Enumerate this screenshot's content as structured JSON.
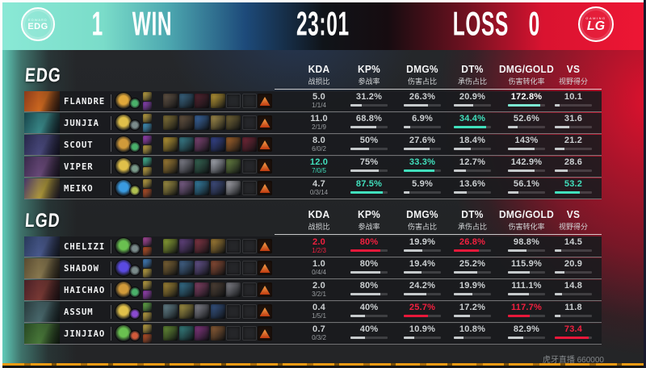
{
  "topbar": {
    "left_logo": "EDG",
    "left_logo_sub": "EDWARD",
    "left_score": "1",
    "left_result": "WIN",
    "timer": "23:01",
    "right_result": "LOSS",
    "right_score": "0",
    "right_logo": "LG",
    "right_logo_sub": "GAMING"
  },
  "columns": [
    {
      "en": "KDA",
      "zh": "战损比"
    },
    {
      "en": "KP%",
      "zh": "参战率"
    },
    {
      "en": "DMG%",
      "zh": "伤害占比"
    },
    {
      "en": "DT%",
      "zh": "承伤占比"
    },
    {
      "en": "DMG/GOLD",
      "zh": "伤害转化率"
    },
    {
      "en": "VS",
      "zh": "视野得分"
    }
  ],
  "stat_refs": [
    100,
    40,
    40,
    200,
    80
  ],
  "colors": {
    "teal_accent": "#41e0bd",
    "red_accent": "#ee1e3e",
    "bar_fill": "#c6cacc",
    "win_side": "#7adcc9",
    "loss_side": "#e01230",
    "trinket": "#d85a1e"
  },
  "teams": [
    {
      "label": "EDG",
      "result": "WIN",
      "players": [
        {
          "name": "FLANDRE",
          "portrait": [
            "#8a3a1a",
            "#d06a20",
            "#2a140c"
          ],
          "keystone": "#e0a83a",
          "secondary": "#4ab06a",
          "spells": [
            "#d8b84a",
            "#a04ad0"
          ],
          "items": [
            "#6b5a4a",
            "#3f6e8e",
            "#5a2633",
            "#c9a53a",
            "",
            ""
          ],
          "kda": "5.0",
          "kda_detail": "1/1/4",
          "kda_hl": null,
          "stats": [
            {
              "v": "31.2%",
              "hl": null
            },
            {
              "v": "26.3%",
              "hl": null
            },
            {
              "v": "20.9%",
              "hl": null
            },
            {
              "v": "172.8%",
              "hl": "teal-white"
            },
            {
              "v": "10.1",
              "hl": null
            }
          ]
        },
        {
          "name": "JUNJIA",
          "portrait": [
            "#17444a",
            "#3a8a8a",
            "#0e1f28"
          ],
          "keystone": "#e0c04a",
          "secondary": "#7a8a8a",
          "spells": [
            "#d8b84a",
            "#4aa8d8"
          ],
          "items": [
            "#8f7c3c",
            "#6e5a46",
            "#3f6fae",
            "#b29a52",
            "#7c6c3a",
            ""
          ],
          "kda": "11.0",
          "kda_detail": "2/1/9",
          "kda_hl": null,
          "stats": [
            {
              "v": "68.8%",
              "hl": null
            },
            {
              "v": "6.9%",
              "hl": null
            },
            {
              "v": "34.4%",
              "hl": "teal"
            },
            {
              "v": "52.6%",
              "hl": null
            },
            {
              "v": "31.6",
              "hl": null
            }
          ]
        },
        {
          "name": "SCOUT",
          "portrait": [
            "#262648",
            "#4a4a7e",
            "#131328"
          ],
          "keystone": "#d09a3a",
          "secondary": "#4ab06a",
          "spells": [
            "#b04ad0",
            "#d8b84a"
          ],
          "items": [
            "#c9a53a",
            "#3f8a99",
            "#8a4a7e",
            "#3a4a99",
            "#b06a2e",
            "#7e2a3c"
          ],
          "kda": "8.0",
          "kda_detail": "6/0/2",
          "kda_hl": null,
          "stats": [
            {
              "v": "50%",
              "hl": null
            },
            {
              "v": "27.6%",
              "hl": null
            },
            {
              "v": "18.4%",
              "hl": null
            },
            {
              "v": "143%",
              "hl": null
            },
            {
              "v": "21.2",
              "hl": null
            }
          ]
        },
        {
          "name": "VIPER",
          "portrait": [
            "#38284a",
            "#6a4a7a",
            "#191324"
          ],
          "keystone": "#e0c04a",
          "secondary": "#7a9a8a",
          "spells": [
            "#4ad0a8",
            "#d8b84a"
          ],
          "items": [
            "#b08a3a",
            "#8d8d99",
            "#3a6e5a",
            "#b8bcc6",
            "#6e8a46",
            ""
          ],
          "kda": "12.0",
          "kda_detail": "7/0/5",
          "kda_hl": "teal",
          "stats": [
            {
              "v": "75%",
              "hl": null
            },
            {
              "v": "33.3%",
              "hl": "teal"
            },
            {
              "v": "12.7%",
              "hl": null
            },
            {
              "v": "142.9%",
              "hl": null
            },
            {
              "v": "28.6",
              "hl": null
            }
          ]
        },
        {
          "name": "MEIKO",
          "portrait": [
            "#463468",
            "#b09a3a",
            "#1e1830"
          ],
          "keystone": "#3a9ae0",
          "secondary": "#b0c050",
          "spells": [
            "#d8b84a",
            "#d05a2a"
          ],
          "items": [
            "#b2a04a",
            "#8a6a99",
            "#3a8ab2",
            "#46568e",
            "#b2b2ba",
            ""
          ],
          "kda": "4.7",
          "kda_detail": "0/3/14",
          "kda_hl": null,
          "stats": [
            {
              "v": "87.5%",
              "hl": "teal"
            },
            {
              "v": "5.9%",
              "hl": null
            },
            {
              "v": "13.6%",
              "hl": null
            },
            {
              "v": "56.1%",
              "hl": null
            },
            {
              "v": "53.2",
              "hl": "teal"
            }
          ]
        }
      ]
    },
    {
      "label": "LGD",
      "result": "LOSS",
      "players": [
        {
          "name": "CHELIZI",
          "portrait": [
            "#28385a",
            "#4a5a8e",
            "#141b2a"
          ],
          "keystone": "#6ac050",
          "secondary": "#7a8a8a",
          "spells": [
            "#c050b0",
            "#d05a2a"
          ],
          "items": [
            "#99b23a",
            "#6e4a8e",
            "#8e3a4a",
            "#b28a3a",
            "",
            ""
          ],
          "kda": "2.0",
          "kda_detail": "1/2/3",
          "kda_hl": "red",
          "stats": [
            {
              "v": "80%",
              "hl": "red"
            },
            {
              "v": "19.9%",
              "hl": null
            },
            {
              "v": "26.8%",
              "hl": "red"
            },
            {
              "v": "98.8%",
              "hl": null
            },
            {
              "v": "14.5",
              "hl": null
            }
          ]
        },
        {
          "name": "SHADOW",
          "portrait": [
            "#584a30",
            "#8a7a50",
            "#241e14"
          ],
          "keystone": "#5a4ae0",
          "secondary": "#7a8a8a",
          "spells": [
            "#4a90d8",
            "#d8b84a"
          ],
          "items": [
            "#8a6e3a",
            "#4a6e99",
            "#6e5a99",
            "#99543a",
            "",
            ""
          ],
          "kda": "1.0",
          "kda_detail": "0/4/4",
          "kda_hl": null,
          "stats": [
            {
              "v": "80%",
              "hl": null
            },
            {
              "v": "19.4%",
              "hl": null
            },
            {
              "v": "25.2%",
              "hl": null
            },
            {
              "v": "115.9%",
              "hl": null
            },
            {
              "v": "20.9",
              "hl": null
            }
          ]
        },
        {
          "name": "HAICHAO",
          "portrait": [
            "#481f26",
            "#7a3a35",
            "#1e0e12"
          ],
          "keystone": "#d09a3a",
          "secondary": "#4ab06a",
          "spells": [
            "#d8b84a",
            "#b04ad0"
          ],
          "items": [
            "#b2923a",
            "#3a7a99",
            "#8e466e",
            "#56463a",
            "#8a8a92",
            ""
          ],
          "kda": "2.0",
          "kda_detail": "3/2/1",
          "kda_hl": null,
          "stats": [
            {
              "v": "80%",
              "hl": null
            },
            {
              "v": "24.2%",
              "hl": null
            },
            {
              "v": "19.9%",
              "hl": null
            },
            {
              "v": "111.1%",
              "hl": null
            },
            {
              "v": "14.8",
              "hl": null
            }
          ]
        },
        {
          "name": "ASSUM",
          "portrait": [
            "#283a3c",
            "#4a6a6e",
            "#111c1d"
          ],
          "keystone": "#e0c04a",
          "secondary": "#8a4ad0",
          "spells": [
            "#70c050",
            "#d8b84a"
          ],
          "items": [
            "#6e8e99",
            "#b2a04a",
            "#8e8e99",
            "#3a5a8e",
            "",
            ""
          ],
          "kda": "0.4",
          "kda_detail": "1/5/1",
          "kda_hl": null,
          "stats": [
            {
              "v": "40%",
              "hl": null
            },
            {
              "v": "25.7%",
              "hl": "red"
            },
            {
              "v": "17.2%",
              "hl": null
            },
            {
              "v": "117.7%",
              "hl": "red"
            },
            {
              "v": "11.8",
              "hl": null
            }
          ]
        },
        {
          "name": "JINJIAO",
          "portrait": [
            "#274722",
            "#4a7a3a",
            "#0f1e0e"
          ],
          "keystone": "#6ac050",
          "secondary": "#d05a3a",
          "spells": [
            "#d8b84a",
            "#d05a2a"
          ],
          "items": [
            "#6e993a",
            "#3a8a8a",
            "#8e3a8a",
            "#99653a",
            "",
            ""
          ],
          "kda": "0.7",
          "kda_detail": "0/3/2",
          "kda_hl": null,
          "stats": [
            {
              "v": "40%",
              "hl": null
            },
            {
              "v": "10.9%",
              "hl": null
            },
            {
              "v": "10.8%",
              "hl": null
            },
            {
              "v": "82.9%",
              "hl": null
            },
            {
              "v": "73.4",
              "hl": "red"
            }
          ]
        }
      ]
    }
  ],
  "watermark": "虎牙直播 660000"
}
